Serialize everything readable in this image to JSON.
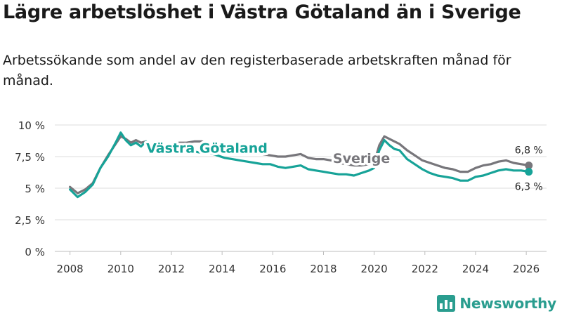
{
  "title": "Lägre arbetslöshet i Västra Götaland än i Sverige",
  "subtitle": "Arbetssökande som andel av den registerbaserade arbetskraften månad för månad.",
  "brand": {
    "name": "Newsworthy",
    "color": "#2a9d8f",
    "icon": "bar-chart-logo-icon"
  },
  "chart_data": {
    "type": "line",
    "title": "Lägre arbetslöshet i Västra Götaland än i Sverige",
    "xlabel": "",
    "ylabel": "",
    "xlim": [
      2007.4,
      2026.8
    ],
    "ylim": [
      0,
      10
    ],
    "grid": true,
    "x_ticks": [
      2008,
      2010,
      2012,
      2014,
      2016,
      2018,
      2020,
      2022,
      2024,
      2026
    ],
    "x_tick_labels": [
      "2008",
      "2010",
      "2012",
      "2014",
      "2016",
      "2018",
      "2020",
      "2022",
      "2024",
      "2026"
    ],
    "y_ticks": [
      0,
      2.5,
      5,
      7.5,
      10
    ],
    "y_tick_labels": [
      "0 %",
      "2,5 %",
      "5 %",
      "7,5 %",
      "10 %"
    ],
    "series": [
      {
        "name": "Sverige",
        "color": "#77767b",
        "end_label": "6,8 %",
        "x": [
          2008.0,
          2008.3,
          2008.6,
          2008.9,
          2009.2,
          2009.5,
          2009.8,
          2010.0,
          2010.2,
          2010.4,
          2010.6,
          2010.8,
          2011.0,
          2011.2,
          2011.5,
          2011.8,
          2012.0,
          2012.3,
          2012.6,
          2012.9,
          2013.2,
          2013.5,
          2013.8,
          2014.1,
          2014.4,
          2014.7,
          2015.0,
          2015.3,
          2015.6,
          2015.9,
          2016.2,
          2016.5,
          2016.8,
          2017.1,
          2017.4,
          2017.7,
          2018.0,
          2018.3,
          2018.6,
          2018.9,
          2019.2,
          2019.5,
          2019.8,
          2020.0,
          2020.2,
          2020.4,
          2020.6,
          2020.8,
          2021.0,
          2021.3,
          2021.6,
          2021.9,
          2022.2,
          2022.5,
          2022.8,
          2023.1,
          2023.4,
          2023.7,
          2024.0,
          2024.3,
          2024.6,
          2024.9,
          2025.2,
          2025.5,
          2025.8,
          2026.1
        ],
        "values": [
          5.1,
          4.6,
          4.9,
          5.4,
          6.6,
          7.6,
          8.5,
          9.1,
          8.9,
          8.6,
          8.8,
          8.6,
          8.7,
          8.3,
          8.1,
          8.2,
          8.3,
          8.6,
          8.6,
          8.7,
          8.7,
          8.5,
          8.4,
          8.3,
          8.1,
          8.0,
          7.9,
          7.8,
          7.7,
          7.6,
          7.5,
          7.5,
          7.6,
          7.7,
          7.4,
          7.3,
          7.3,
          7.2,
          7.0,
          6.9,
          6.8,
          6.8,
          6.9,
          7.0,
          8.4,
          9.1,
          8.9,
          8.7,
          8.5,
          8.0,
          7.6,
          7.2,
          7.0,
          6.8,
          6.6,
          6.5,
          6.3,
          6.3,
          6.6,
          6.8,
          6.9,
          7.1,
          7.2,
          7.0,
          6.9,
          6.8
        ]
      },
      {
        "name": "Västra Götaland",
        "color": "#17a398",
        "end_label": "6,3 %",
        "x": [
          2008.0,
          2008.3,
          2008.6,
          2008.9,
          2009.2,
          2009.5,
          2009.8,
          2010.0,
          2010.2,
          2010.4,
          2010.6,
          2010.8,
          2011.0,
          2011.2,
          2011.5,
          2011.8,
          2012.0,
          2012.3,
          2012.6,
          2012.9,
          2013.2,
          2013.5,
          2013.8,
          2014.1,
          2014.4,
          2014.7,
          2015.0,
          2015.3,
          2015.6,
          2015.9,
          2016.2,
          2016.5,
          2016.8,
          2017.1,
          2017.4,
          2017.7,
          2018.0,
          2018.3,
          2018.6,
          2018.9,
          2019.2,
          2019.5,
          2019.8,
          2020.0,
          2020.2,
          2020.4,
          2020.6,
          2020.8,
          2021.0,
          2021.3,
          2021.6,
          2021.9,
          2022.2,
          2022.5,
          2022.8,
          2023.1,
          2023.4,
          2023.7,
          2024.0,
          2024.3,
          2024.6,
          2024.9,
          2025.2,
          2025.5,
          2025.8,
          2026.1
        ],
        "values": [
          4.9,
          4.3,
          4.7,
          5.3,
          6.6,
          7.5,
          8.6,
          9.4,
          8.8,
          8.4,
          8.6,
          8.3,
          8.7,
          7.9,
          8.0,
          8.1,
          8.0,
          8.1,
          8.0,
          7.9,
          7.8,
          7.8,
          7.6,
          7.4,
          7.3,
          7.2,
          7.1,
          7.0,
          6.9,
          6.9,
          6.7,
          6.6,
          6.7,
          6.8,
          6.5,
          6.4,
          6.3,
          6.2,
          6.1,
          6.1,
          6.0,
          6.2,
          6.4,
          6.6,
          8.0,
          8.8,
          8.4,
          8.1,
          8.0,
          7.3,
          6.9,
          6.5,
          6.2,
          6.0,
          5.9,
          5.8,
          5.6,
          5.6,
          5.9,
          6.0,
          6.2,
          6.4,
          6.5,
          6.4,
          6.4,
          6.3
        ]
      }
    ],
    "annotations": [
      {
        "text": "Västra Götaland",
        "series": "Västra Götaland",
        "x": 2013.4,
        "y": 8.2
      },
      {
        "text": "Sverige",
        "series": "Sverige",
        "x": 2019.5,
        "y": 7.4
      }
    ]
  }
}
